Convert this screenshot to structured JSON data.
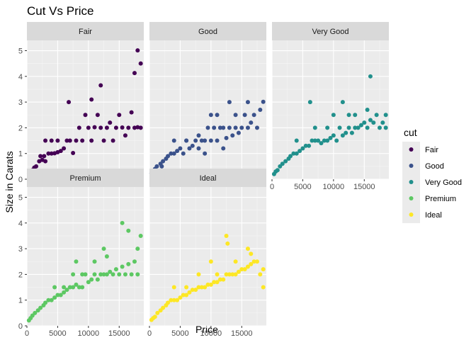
{
  "chart_data": {
    "type": "scatter",
    "title": "Cut Vs Price",
    "xlabel": "Price",
    "ylabel": "Size in Carats",
    "xlim": [
      0,
      19000
    ],
    "ylim": [
      0,
      5.4
    ],
    "x_ticks": [
      0,
      5000,
      10000,
      15000
    ],
    "y_ticks": [
      0,
      1,
      2,
      3,
      4,
      5
    ],
    "x_tick_labels": [
      "0",
      "5000",
      "10000",
      "15000"
    ],
    "y_tick_labels": [
      "0",
      "1",
      "2",
      "3",
      "4",
      "5"
    ],
    "grid": true,
    "legend": {
      "title": "cut",
      "position": "right"
    },
    "facets": [
      "Fair",
      "Good",
      "Very Good",
      "Premium",
      "Ideal"
    ],
    "series": [
      {
        "name": "Fair",
        "color": "#440154",
        "points": [
          [
            337,
            0.22
          ],
          [
            600,
            0.3
          ],
          [
            900,
            0.35
          ],
          [
            1200,
            0.45
          ],
          [
            1500,
            0.5
          ],
          [
            2000,
            0.7
          ],
          [
            2500,
            0.75
          ],
          [
            2800,
            0.9
          ],
          [
            3000,
            0.7
          ],
          [
            3500,
            1.0
          ],
          [
            4000,
            1.0
          ],
          [
            4500,
            1.01
          ],
          [
            5000,
            1.05
          ],
          [
            5500,
            1.1
          ],
          [
            6000,
            1.2
          ],
          [
            6500,
            1.5
          ],
          [
            7000,
            1.5
          ],
          [
            7500,
            1.02
          ],
          [
            8000,
            1.5
          ],
          [
            8500,
            2.0
          ],
          [
            9000,
            1.5
          ],
          [
            10000,
            2.0
          ],
          [
            10500,
            1.5
          ],
          [
            11000,
            2.02
          ],
          [
            11500,
            2.5
          ],
          [
            12000,
            2.0
          ],
          [
            12500,
            1.5
          ],
          [
            13000,
            2.0
          ],
          [
            13500,
            2.2
          ],
          [
            14000,
            1.5
          ],
          [
            14500,
            2.0
          ],
          [
            15000,
            2.5
          ],
          [
            15500,
            2.01
          ],
          [
            16000,
            1.7
          ],
          [
            16500,
            2.0
          ],
          [
            17000,
            2.6
          ],
          [
            17500,
            2.0
          ],
          [
            18000,
            2.02
          ],
          [
            18500,
            2.0
          ],
          [
            4000,
            1.5
          ],
          [
            6800,
            3.0
          ],
          [
            10500,
            3.1
          ],
          [
            12000,
            3.65
          ],
          [
            17500,
            4.13
          ],
          [
            18500,
            4.5
          ],
          [
            18000,
            5.01
          ],
          [
            3000,
            1.5
          ],
          [
            5000,
            1.5
          ],
          [
            2200,
            0.9
          ],
          [
            9500,
            2.5
          ]
        ]
      },
      {
        "name": "Good",
        "color": "#3b528b",
        "points": [
          [
            327,
            0.23
          ],
          [
            600,
            0.3
          ],
          [
            900,
            0.4
          ],
          [
            1200,
            0.5
          ],
          [
            1800,
            0.6
          ],
          [
            2200,
            0.7
          ],
          [
            2700,
            0.8
          ],
          [
            3000,
            0.9
          ],
          [
            3500,
            1.0
          ],
          [
            4000,
            1.0
          ],
          [
            4500,
            1.1
          ],
          [
            5000,
            1.2
          ],
          [
            5500,
            1.0
          ],
          [
            6000,
            1.5
          ],
          [
            6500,
            1.2
          ],
          [
            7000,
            1.3
          ],
          [
            7500,
            1.5
          ],
          [
            8000,
            1.2
          ],
          [
            8500,
            1.5
          ],
          [
            9000,
            1.5
          ],
          [
            9500,
            2.0
          ],
          [
            10000,
            1.5
          ],
          [
            10500,
            2.0
          ],
          [
            11000,
            1.5
          ],
          [
            11500,
            2.0
          ],
          [
            12000,
            2.0
          ],
          [
            12500,
            1.6
          ],
          [
            13000,
            2.0
          ],
          [
            13500,
            1.7
          ],
          [
            14000,
            2.0
          ],
          [
            14500,
            1.8
          ],
          [
            15000,
            2.0
          ],
          [
            15500,
            2.5
          ],
          [
            16000,
            2.0
          ],
          [
            16500,
            2.2
          ],
          [
            17000,
            2.5
          ],
          [
            17500,
            2.0
          ],
          [
            18000,
            2.7
          ],
          [
            18500,
            3.01
          ],
          [
            11000,
            2.5
          ],
          [
            13000,
            3.0
          ],
          [
            16000,
            3.0
          ],
          [
            10000,
            2.5
          ],
          [
            4000,
            1.5
          ],
          [
            6000,
            1.5
          ],
          [
            8000,
            1.7
          ],
          [
            9000,
            1.0
          ],
          [
            12000,
            1.2
          ],
          [
            14000,
            2.5
          ],
          [
            2000,
            0.5
          ]
        ]
      },
      {
        "name": "Very Good",
        "color": "#21908c",
        "points": [
          [
            336,
            0.2
          ],
          [
            600,
            0.3
          ],
          [
            900,
            0.35
          ],
          [
            1300,
            0.5
          ],
          [
            1700,
            0.6
          ],
          [
            2200,
            0.7
          ],
          [
            2700,
            0.8
          ],
          [
            3000,
            0.9
          ],
          [
            3500,
            1.0
          ],
          [
            4000,
            1.0
          ],
          [
            4500,
            1.1
          ],
          [
            5000,
            1.2
          ],
          [
            5500,
            1.3
          ],
          [
            6000,
            1.3
          ],
          [
            6500,
            1.5
          ],
          [
            7000,
            1.5
          ],
          [
            7500,
            1.5
          ],
          [
            8000,
            1.4
          ],
          [
            8500,
            1.5
          ],
          [
            9000,
            1.5
          ],
          [
            9500,
            1.6
          ],
          [
            10000,
            1.7
          ],
          [
            10500,
            1.5
          ],
          [
            11000,
            2.0
          ],
          [
            11500,
            1.7
          ],
          [
            12000,
            1.8
          ],
          [
            12500,
            2.0
          ],
          [
            13000,
            1.8
          ],
          [
            13500,
            2.0
          ],
          [
            14000,
            2.0
          ],
          [
            14500,
            2.1
          ],
          [
            15000,
            2.2
          ],
          [
            15500,
            2.0
          ],
          [
            16000,
            2.3
          ],
          [
            16500,
            2.2
          ],
          [
            17000,
            2.5
          ],
          [
            17500,
            2.0
          ],
          [
            18000,
            2.2
          ],
          [
            18500,
            2.5
          ],
          [
            6200,
            3.0
          ],
          [
            11500,
            3.0
          ],
          [
            13500,
            2.5
          ],
          [
            15500,
            2.7
          ],
          [
            16000,
            4.0
          ],
          [
            18500,
            2.0
          ],
          [
            4000,
            1.5
          ],
          [
            7000,
            2.0
          ],
          [
            9000,
            2.0
          ],
          [
            10000,
            2.5
          ],
          [
            12500,
            2.5
          ]
        ]
      },
      {
        "name": "Premium",
        "color": "#5dc863",
        "points": [
          [
            326,
            0.21
          ],
          [
            600,
            0.3
          ],
          [
            900,
            0.4
          ],
          [
            1300,
            0.5
          ],
          [
            1800,
            0.6
          ],
          [
            2200,
            0.7
          ],
          [
            2700,
            0.8
          ],
          [
            3000,
            0.9
          ],
          [
            3500,
            1.0
          ],
          [
            4000,
            1.0
          ],
          [
            4500,
            1.1
          ],
          [
            5000,
            1.2
          ],
          [
            5500,
            1.2
          ],
          [
            6000,
            1.3
          ],
          [
            6500,
            1.4
          ],
          [
            7000,
            1.5
          ],
          [
            7500,
            1.5
          ],
          [
            8000,
            1.6
          ],
          [
            8500,
            1.5
          ],
          [
            9000,
            1.5
          ],
          [
            9500,
            2.0
          ],
          [
            10000,
            1.7
          ],
          [
            10500,
            1.8
          ],
          [
            11000,
            2.0
          ],
          [
            11500,
            1.8
          ],
          [
            12000,
            2.0
          ],
          [
            12500,
            2.0
          ],
          [
            13000,
            2.0
          ],
          [
            13500,
            2.1
          ],
          [
            14000,
            2.0
          ],
          [
            14500,
            2.2
          ],
          [
            15000,
            2.0
          ],
          [
            15500,
            2.3
          ],
          [
            16000,
            2.0
          ],
          [
            16500,
            2.4
          ],
          [
            17000,
            2.0
          ],
          [
            17500,
            2.5
          ],
          [
            18000,
            2.0
          ],
          [
            18500,
            3.5
          ],
          [
            6000,
            1.5
          ],
          [
            8000,
            2.5
          ],
          [
            11000,
            2.5
          ],
          [
            12500,
            3.0
          ],
          [
            15500,
            4.0
          ],
          [
            16500,
            3.7
          ],
          [
            18000,
            3.0
          ],
          [
            13000,
            2.7
          ],
          [
            9000,
            2.0
          ],
          [
            4500,
            1.5
          ],
          [
            7500,
            2.0
          ]
        ]
      },
      {
        "name": "Ideal",
        "color": "#fde725",
        "points": [
          [
            326,
            0.23
          ],
          [
            600,
            0.3
          ],
          [
            900,
            0.35
          ],
          [
            1300,
            0.5
          ],
          [
            1800,
            0.6
          ],
          [
            2200,
            0.7
          ],
          [
            2700,
            0.8
          ],
          [
            3000,
            0.9
          ],
          [
            3500,
            1.0
          ],
          [
            4000,
            1.0
          ],
          [
            4500,
            1.0
          ],
          [
            5000,
            1.1
          ],
          [
            5500,
            1.2
          ],
          [
            6000,
            1.2
          ],
          [
            6500,
            1.3
          ],
          [
            7000,
            1.4
          ],
          [
            7500,
            1.4
          ],
          [
            8000,
            1.5
          ],
          [
            8500,
            1.5
          ],
          [
            9000,
            1.5
          ],
          [
            9500,
            1.6
          ],
          [
            10000,
            1.6
          ],
          [
            10500,
            1.7
          ],
          [
            11000,
            1.7
          ],
          [
            11500,
            1.8
          ],
          [
            12000,
            1.8
          ],
          [
            12500,
            2.0
          ],
          [
            13000,
            2.0
          ],
          [
            13500,
            2.0
          ],
          [
            14000,
            2.0
          ],
          [
            14500,
            2.1
          ],
          [
            15000,
            2.2
          ],
          [
            15500,
            2.2
          ],
          [
            16000,
            2.3
          ],
          [
            16500,
            2.4
          ],
          [
            17000,
            2.5
          ],
          [
            17500,
            2.5
          ],
          [
            18000,
            2.0
          ],
          [
            18500,
            2.2
          ],
          [
            12500,
            3.5
          ],
          [
            12700,
            3.2
          ],
          [
            16000,
            3.0
          ],
          [
            16500,
            2.8
          ],
          [
            10000,
            2.5
          ],
          [
            8000,
            2.0
          ],
          [
            6000,
            1.5
          ],
          [
            4000,
            1.5
          ],
          [
            11000,
            2.0
          ],
          [
            14000,
            2.5
          ],
          [
            18500,
            1.5
          ]
        ]
      }
    ]
  }
}
